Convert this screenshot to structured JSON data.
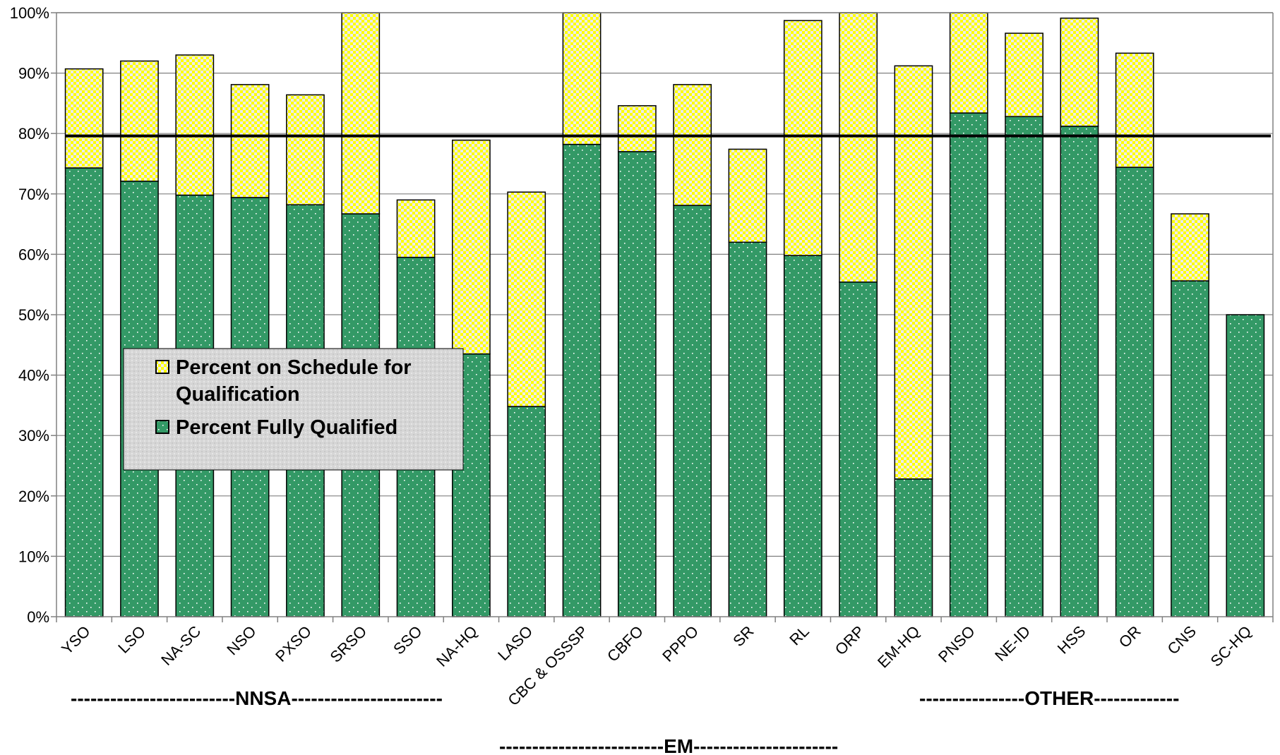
{
  "chart_data": {
    "type": "bar",
    "stacked": true,
    "categories": [
      "YSO",
      "LSO",
      "NA-SC",
      "NSO",
      "PXSO",
      "SRSO",
      "SSO",
      "NA-HQ",
      "LASO",
      "CBC & OSSSP",
      "CBFO",
      "PPPO",
      "SR",
      "RL",
      "ORP",
      "EM-HQ",
      "PNSO",
      "NE-ID",
      "HSS",
      "OR",
      "CNS",
      "SC-HQ"
    ],
    "series": [
      {
        "name": "Percent Fully Qualified",
        "color": "#339966",
        "values": [
          74.3,
          72.1,
          69.8,
          69.4,
          68.2,
          66.7,
          59.5,
          43.5,
          34.8,
          78.2,
          77.0,
          68.1,
          62.0,
          59.8,
          55.4,
          22.8,
          83.4,
          82.8,
          81.2,
          74.4,
          55.6,
          50.0
        ]
      },
      {
        "name": "Percent on Schedule for Qualification",
        "color": "#ffff00",
        "values": [
          16.4,
          19.9,
          23.2,
          18.7,
          18.2,
          33.3,
          9.5,
          35.4,
          35.5,
          21.8,
          7.6,
          20.0,
          15.4,
          38.9,
          44.6,
          68.4,
          16.6,
          13.8,
          17.9,
          18.9,
          11.1,
          0
        ]
      }
    ],
    "ylim": [
      0,
      100
    ],
    "yticks": [
      "0%",
      "10%",
      "20%",
      "30%",
      "40%",
      "50%",
      "60%",
      "70%",
      "80%",
      "90%",
      "100%"
    ],
    "reference_line": 79.6,
    "grid": true,
    "legend_placement": "inside-left",
    "group_labels": {
      "nnsa": "-------------------------NNSA-----------------------",
      "em": "-------------------------EM----------------------",
      "other": "----------------OTHER-------------"
    }
  }
}
